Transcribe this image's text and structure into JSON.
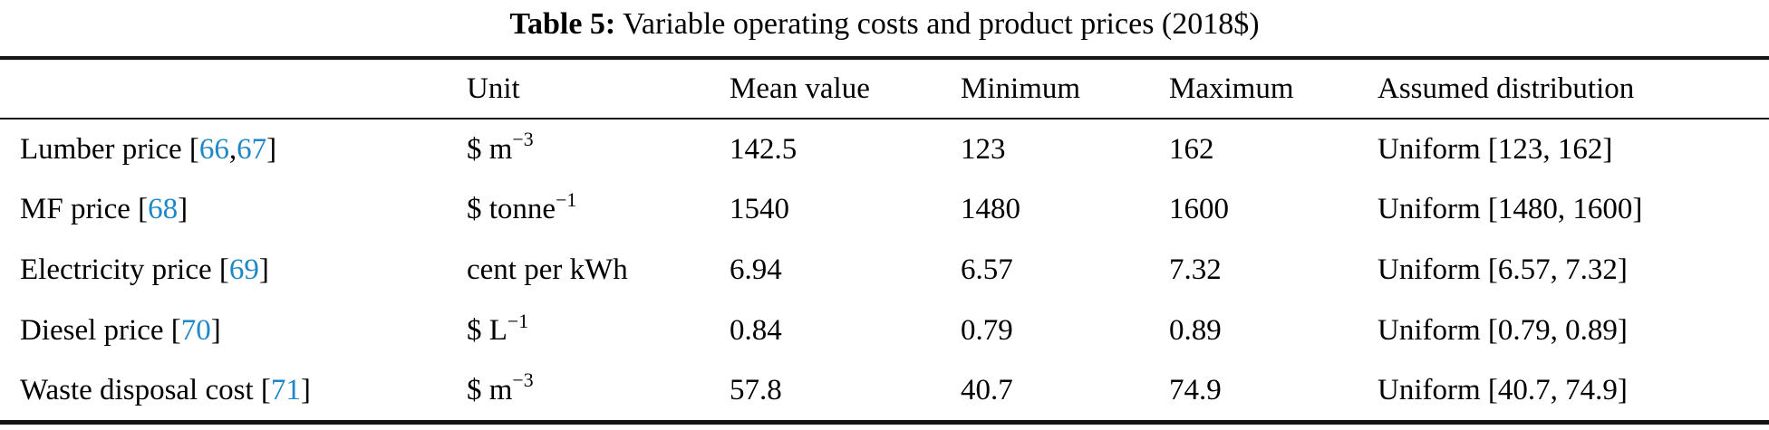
{
  "caption": {
    "label": "Table 5:",
    "text": " Variable operating costs and product prices (2018$)"
  },
  "colors": {
    "citation_link": "#1e87c6",
    "text": "#000000",
    "rule": "#141414"
  },
  "table": {
    "headers": [
      "",
      "Unit",
      "Mean value",
      "Minimum",
      "Maximum",
      "Assumed distribution"
    ],
    "rows": [
      {
        "label_parts": [
          {
            "text": "Lumber price ["
          },
          {
            "text": "66",
            "link": true
          },
          {
            "text": ","
          },
          {
            "text": "67",
            "link": true
          },
          {
            "text": "]"
          }
        ],
        "unit_parts": [
          {
            "text": "$ m"
          },
          {
            "text": "−3",
            "sup": true
          }
        ],
        "mean": "142.5",
        "min": "123",
        "max": "162",
        "dist": "Uniform [123, 162]"
      },
      {
        "label_parts": [
          {
            "text": "MF price ["
          },
          {
            "text": "68",
            "link": true
          },
          {
            "text": "]"
          }
        ],
        "unit_parts": [
          {
            "text": "$ tonne"
          },
          {
            "text": "−1",
            "sup": true
          }
        ],
        "mean": "1540",
        "min": "1480",
        "max": "1600",
        "dist": "Uniform [1480, 1600]"
      },
      {
        "label_parts": [
          {
            "text": "Electricity price ["
          },
          {
            "text": "69",
            "link": true
          },
          {
            "text": "]"
          }
        ],
        "unit_parts": [
          {
            "text": "cent per kWh"
          }
        ],
        "mean": "6.94",
        "min": "6.57",
        "max": "7.32",
        "dist": "Uniform [6.57, 7.32]"
      },
      {
        "label_parts": [
          {
            "text": "Diesel price ["
          },
          {
            "text": "70",
            "link": true
          },
          {
            "text": "]"
          }
        ],
        "unit_parts": [
          {
            "text": "$ L"
          },
          {
            "text": "−1",
            "sup": true
          }
        ],
        "mean": "0.84",
        "min": "0.79",
        "max": "0.89",
        "dist": "Uniform [0.79, 0.89]"
      },
      {
        "label_parts": [
          {
            "text": "Waste disposal cost ["
          },
          {
            "text": "71",
            "link": true
          },
          {
            "text": "]"
          }
        ],
        "unit_parts": [
          {
            "text": "$ m"
          },
          {
            "text": "−3",
            "sup": true
          }
        ],
        "mean": "57.8",
        "min": "40.7",
        "max": "74.9",
        "dist": "Uniform [40.7, 74.9]"
      }
    ]
  }
}
